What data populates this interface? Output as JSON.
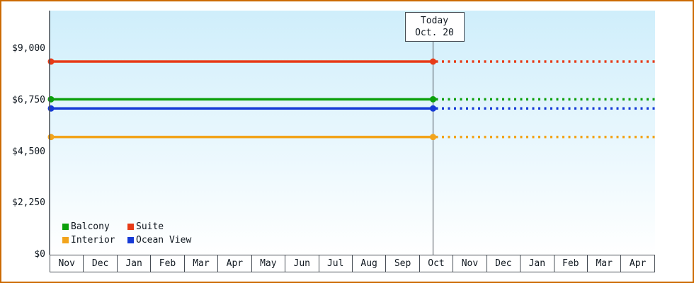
{
  "frame": {
    "border_color": "#cc6a00",
    "background": "#ffffff"
  },
  "chart_data": {
    "type": "line",
    "title": "",
    "x_categories": [
      "Nov",
      "Dec",
      "Jan",
      "Feb",
      "Mar",
      "Apr",
      "May",
      "Jun",
      "Jul",
      "Aug",
      "Sep",
      "Oct",
      "Nov",
      "Dec",
      "Jan",
      "Feb",
      "Mar",
      "Apr"
    ],
    "y_tick_values": [
      0,
      2250,
      4500,
      6750,
      9000
    ],
    "y_tick_labels": [
      "$0",
      "$2,250",
      "$4,500",
      "$6,750",
      "$9,000"
    ],
    "ylim": [
      0,
      10680
    ],
    "today_marker": {
      "label": [
        "Today",
        "Oct. 20"
      ],
      "month_index": 11,
      "day_fraction": 0.4
    },
    "series": [
      {
        "name": "Suite",
        "color": "#e73b17",
        "value": 8450
      },
      {
        "name": "Balcony",
        "color": "#0ba00b",
        "value": 6800
      },
      {
        "name": "Ocean View",
        "color": "#1539d6",
        "value": 6400
      },
      {
        "name": "Interior",
        "color": "#f2a41c",
        "value": 5150
      }
    ],
    "legend_order": [
      "Balcony",
      "Suite",
      "Interior",
      "Ocean View"
    ],
    "line_style": {
      "solid_before_today": true,
      "dotted_after_today": true
    },
    "plot_bg_top": "#cfeefb",
    "plot_bg_bottom": "#ffffff",
    "axis_color": "#474d55",
    "text_color": "#101820"
  }
}
